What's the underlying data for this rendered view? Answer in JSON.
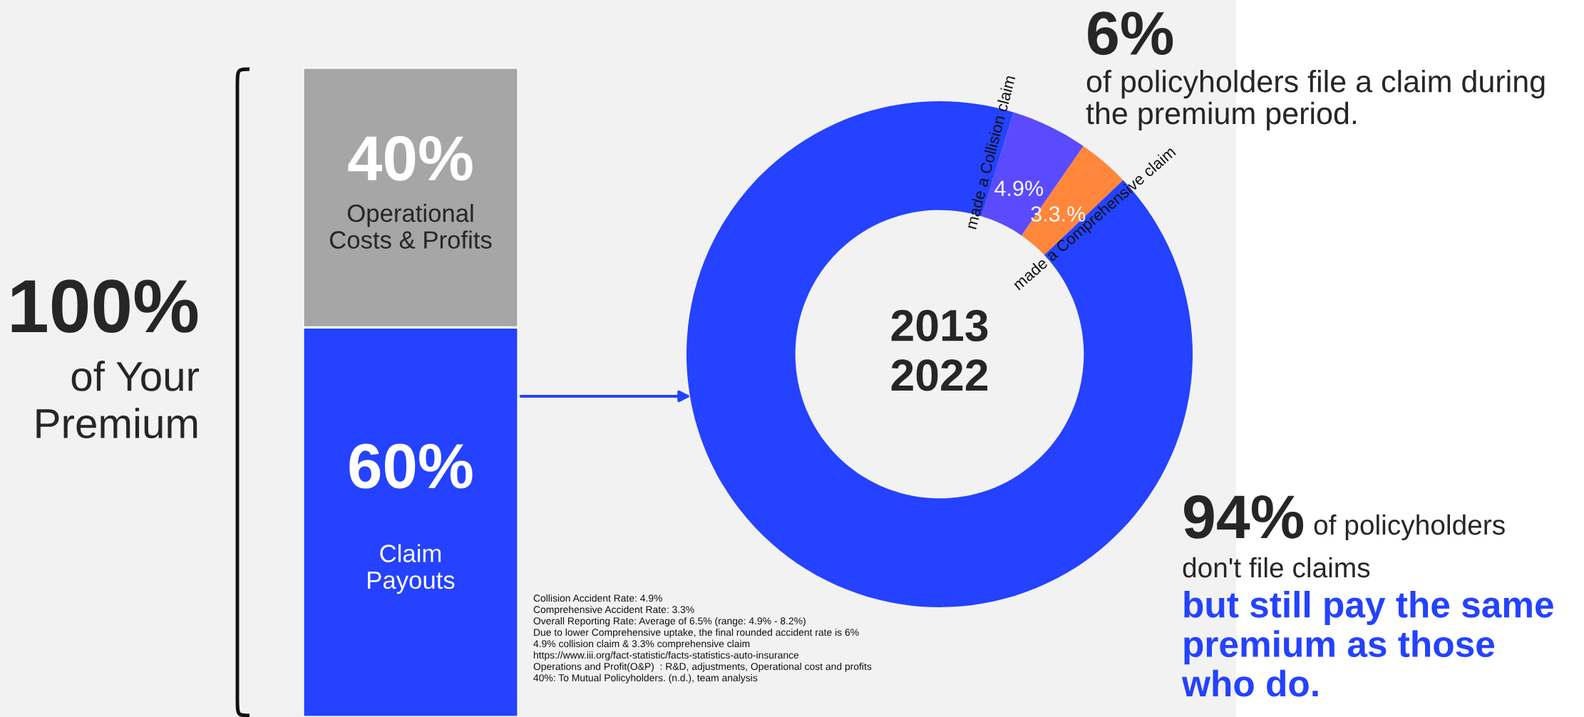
{
  "chart_data": [
    {
      "type": "bar",
      "stacked": true,
      "categories": [
        null
      ],
      "ylim": [
        0,
        100
      ],
      "series": [
        {
          "name": "Claim\nPayouts",
          "color": "#2442ff",
          "values": [
            60
          ],
          "value_labels": [
            "60%"
          ]
        },
        {
          "name": "Operational\nCosts & Profits",
          "color": "#a6a6a6",
          "values": [
            40
          ],
          "value_labels": [
            "40%"
          ]
        }
      ],
      "annotations": [
        "100%",
        "of Your\nPremium"
      ]
    },
    {
      "type": "donut",
      "categories": [
        "made a Collision claim",
        "made a Comprehensive claim",
        null
      ],
      "values": [
        4.9,
        3.3,
        91.8
      ],
      "colors": [
        "#5a4bff",
        "#ff863b",
        "#2442ff"
      ],
      "value_labels": [
        "4.9%",
        "3.3.%",
        null
      ],
      "annotations": [
        "2013\n2022",
        "6%",
        "of policyholders file a claim during\nthe premium period.",
        "94%",
        "of policyholders",
        "don't file claims",
        "but still pay the same\npremium as those\nwho do.",
        "Collision Accident Rate: 4.9%\nComprehensive Accident Rate: 3.3%\nOverall Reporting Rate: Average of 6.5% (range: 4.9% - 8.2%)\nDue to lower Comprehensive uptake, the final rounded accident rate is 6%\n4.9% collision claim & 3.3% comprehensive claim\nhttps://www.iii.org/fact-statistic/facts-statistics-auto-insurance\nOperations and Profit(O&P)  : R&D, adjustments, Operational cost and profits\n40%: To Mutual Policyholders. (n.d.), team analysis"
      ]
    }
  ]
}
